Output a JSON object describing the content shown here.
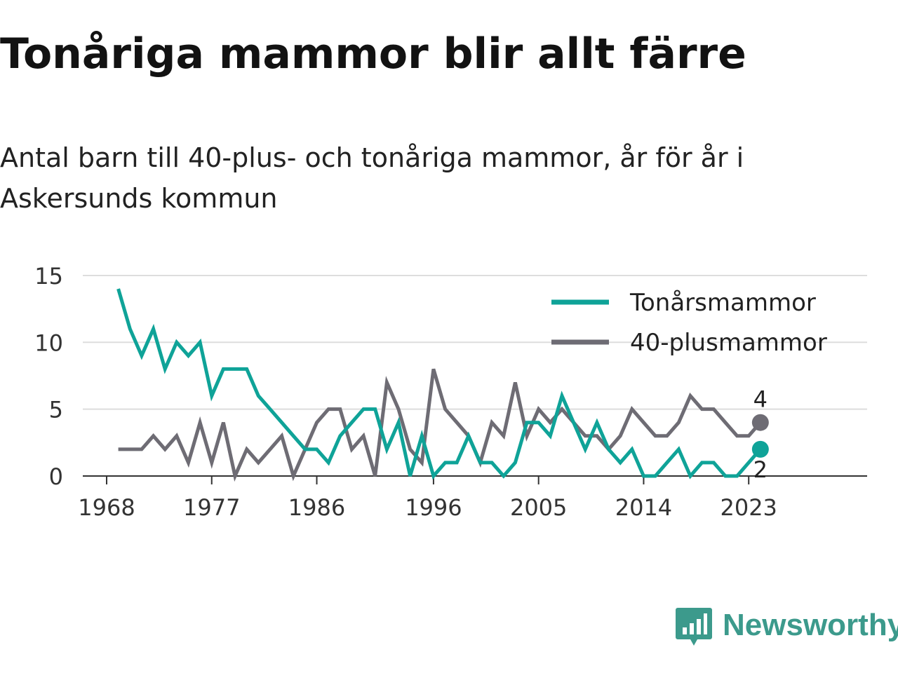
{
  "title": "Tonåriga mammor blir allt färre",
  "subtitle": "Antal barn till 40-plus- och tonåriga mammor, år för år i Askersunds kommun",
  "logo_text": "Newsworthy",
  "colors": {
    "teen": "#0fa398",
    "forty": "#6e6c74",
    "grid": "#dddddd",
    "axis": "#333333"
  },
  "chart_data": {
    "type": "line",
    "title": "Tonåriga mammor blir allt färre",
    "xlabel": "",
    "ylabel": "",
    "x": [
      1969,
      1970,
      1971,
      1972,
      1973,
      1974,
      1975,
      1976,
      1977,
      1978,
      1979,
      1980,
      1981,
      1982,
      1983,
      1984,
      1985,
      1986,
      1987,
      1988,
      1989,
      1990,
      1991,
      1992,
      1993,
      1994,
      1995,
      1996,
      1997,
      1998,
      1999,
      2000,
      2001,
      2002,
      2003,
      2004,
      2005,
      2006,
      2007,
      2008,
      2009,
      2010,
      2011,
      2012,
      2013,
      2014,
      2015,
      2016,
      2017,
      2018,
      2019,
      2020,
      2021,
      2022,
      2023,
      2024
    ],
    "x_ticks": [
      1968,
      1977,
      1986,
      1996,
      2005,
      2014,
      2023
    ],
    "y_ticks": [
      0,
      5,
      10,
      15
    ],
    "xlim": [
      1968,
      2024
    ],
    "ylim": [
      0,
      15
    ],
    "grid": true,
    "legend_position": "top-right",
    "series": [
      {
        "name": "Tonårsmammor",
        "color": "#0fa398",
        "values": [
          14,
          11,
          9,
          11,
          8,
          10,
          9,
          10,
          6,
          8,
          8,
          8,
          6,
          5,
          4,
          3,
          2,
          2,
          1,
          3,
          4,
          5,
          5,
          2,
          4,
          0,
          3,
          0,
          1,
          1,
          3,
          1,
          1,
          0,
          1,
          4,
          4,
          3,
          6,
          4,
          2,
          4,
          2,
          1,
          2,
          0,
          0,
          1,
          2,
          0,
          1,
          1,
          0,
          0,
          1,
          2
        ],
        "end_label": "2"
      },
      {
        "name": "40-plusmammor",
        "color": "#6e6c74",
        "values": [
          2,
          2,
          2,
          3,
          2,
          3,
          1,
          4,
          1,
          4,
          0,
          2,
          1,
          2,
          3,
          0,
          2,
          4,
          5,
          5,
          2,
          3,
          0,
          7,
          5,
          2,
          1,
          8,
          5,
          4,
          3,
          1,
          4,
          3,
          7,
          3,
          5,
          4,
          5,
          4,
          3,
          3,
          2,
          3,
          5,
          4,
          3,
          3,
          4,
          6,
          5,
          5,
          4,
          3,
          3,
          4
        ],
        "end_label": "4"
      }
    ]
  }
}
